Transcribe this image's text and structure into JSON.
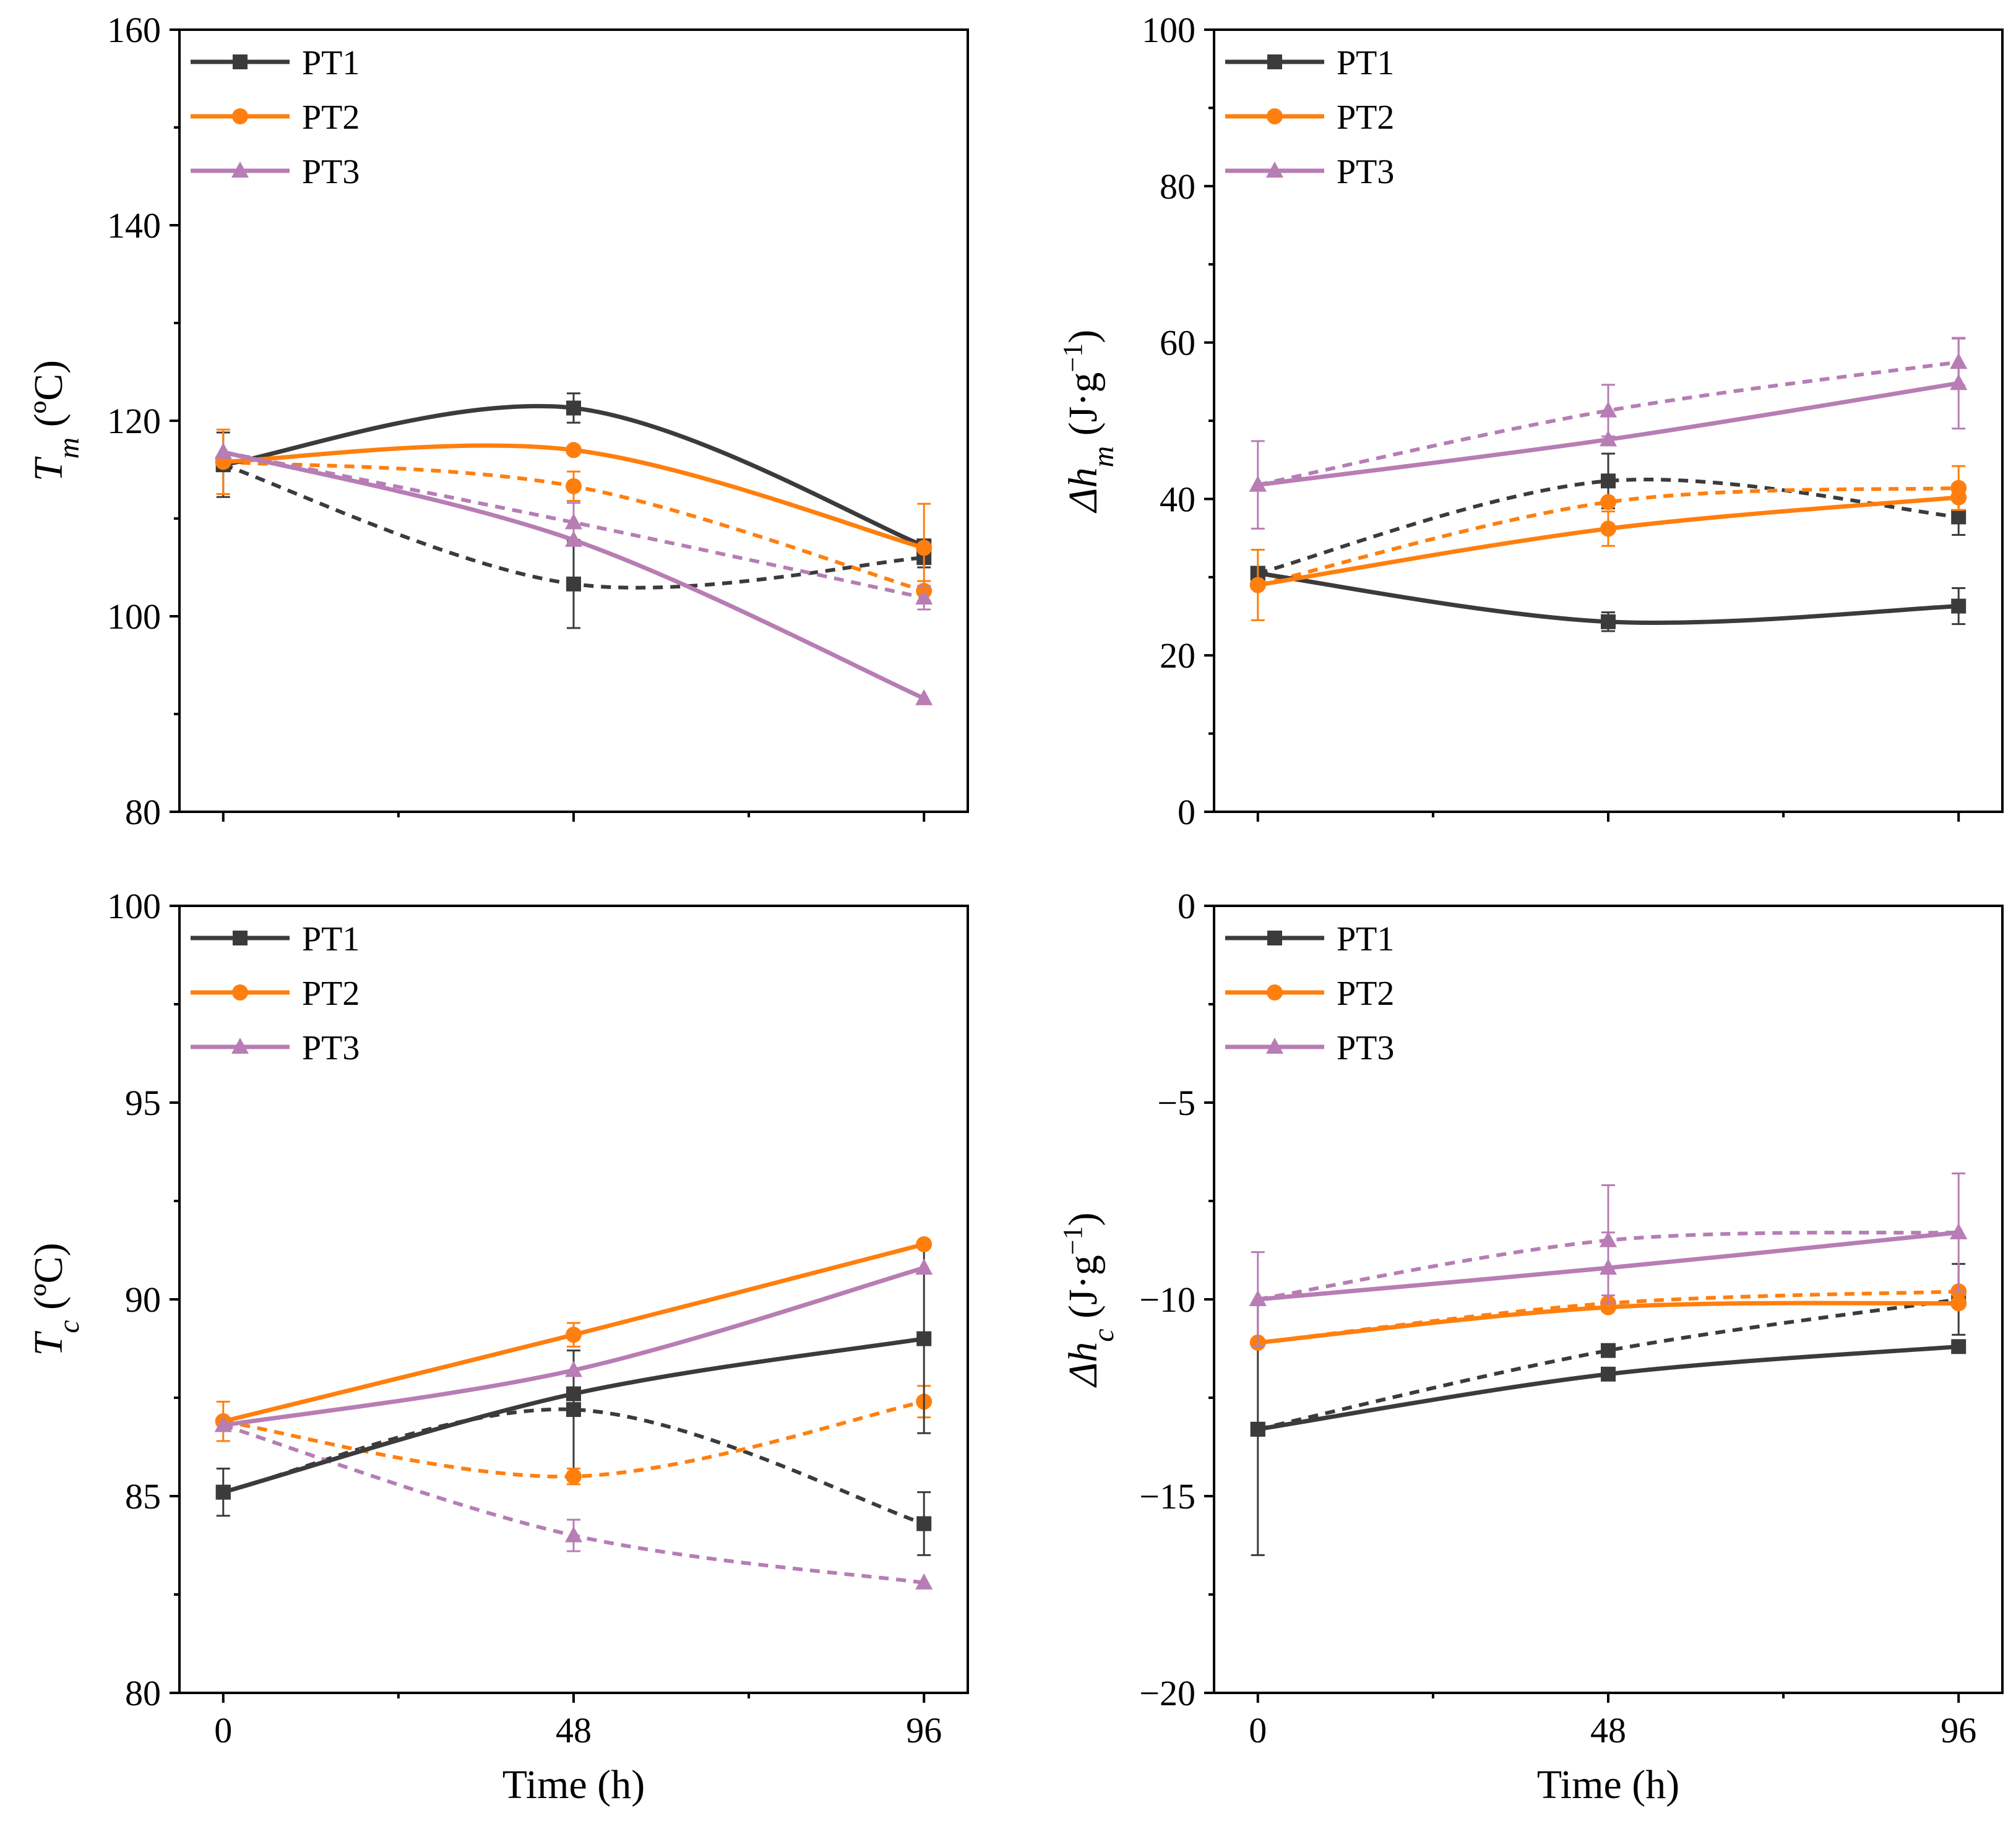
{
  "figure": {
    "colors": {
      "PT1": "#3b3b3b",
      "PT2": "#ff7f0e",
      "PT3": "#b77db4"
    },
    "markers": {
      "PT1": "square",
      "PT2": "circle",
      "PT3": "triangle"
    }
  },
  "chart_data": [
    {
      "id": "tm",
      "type": "line",
      "title": "",
      "xlabel": "",
      "ylabel": {
        "symbol": "T",
        "sub": "m",
        "unit": " (ºC)"
      },
      "x": [
        0,
        48,
        96
      ],
      "xticks": [
        "0",
        "48",
        "96"
      ],
      "show_xtick_labels": false,
      "ylim": [
        80,
        160
      ],
      "yticks": [
        80,
        100,
        120,
        140,
        160
      ],
      "legend": {
        "position": "top-left",
        "entries": [
          "PT1",
          "PT2",
          "PT3"
        ]
      },
      "series": [
        {
          "name": "PT1",
          "style": "solid",
          "values": [
            115.5,
            121.3,
            107.2
          ],
          "err": [
            0,
            1.5,
            0
          ]
        },
        {
          "name": "PT2",
          "style": "solid",
          "values": [
            115.8,
            117.0,
            107.0
          ],
          "err": [
            0,
            0,
            4.5
          ]
        },
        {
          "name": "PT3",
          "style": "solid",
          "values": [
            116.8,
            107.8,
            91.6
          ],
          "err": [
            0,
            0,
            0
          ]
        },
        {
          "name": "PT1",
          "style": "dashed",
          "values": [
            115.5,
            103.3,
            106.0
          ],
          "err": [
            3.3,
            4.5,
            1.0
          ]
        },
        {
          "name": "PT2",
          "style": "dashed",
          "values": [
            115.8,
            113.3,
            102.6
          ],
          "err": [
            3.3,
            1.5,
            1.0
          ]
        },
        {
          "name": "PT3",
          "style": "dashed",
          "values": [
            116.8,
            109.6,
            101.9
          ],
          "err": [
            0,
            2.0,
            1.2
          ]
        }
      ]
    },
    {
      "id": "dhm",
      "type": "line",
      "title": "",
      "xlabel": "",
      "ylabel": {
        "symbol": "Δh",
        "sub": "m",
        "unit": " (J·g",
        "sup": "−1",
        "close": ")"
      },
      "x": [
        0,
        48,
        96
      ],
      "xticks": [
        "0",
        "48",
        "96"
      ],
      "show_xtick_labels": false,
      "ylim": [
        0,
        100
      ],
      "yticks": [
        0,
        20,
        40,
        60,
        80,
        100
      ],
      "legend": {
        "position": "top-left",
        "entries": [
          "PT1",
          "PT2",
          "PT3"
        ]
      },
      "series": [
        {
          "name": "PT1",
          "style": "solid",
          "values": [
            30.5,
            24.3,
            26.3
          ],
          "err": [
            0,
            1.2,
            2.3
          ]
        },
        {
          "name": "PT2",
          "style": "solid",
          "values": [
            29.0,
            36.2,
            40.2
          ],
          "err": [
            4.5,
            2.2,
            0
          ]
        },
        {
          "name": "PT3",
          "style": "solid",
          "values": [
            41.8,
            47.6,
            54.8
          ],
          "err": [
            5.6,
            0,
            5.8
          ]
        },
        {
          "name": "PT1",
          "style": "dashed",
          "values": [
            30.5,
            42.3,
            37.7
          ],
          "err": [
            0,
            3.5,
            2.3
          ]
        },
        {
          "name": "PT2",
          "style": "dashed",
          "values": [
            29.0,
            39.6,
            41.4
          ],
          "err": [
            0,
            0,
            2.8
          ]
        },
        {
          "name": "PT3",
          "style": "dashed",
          "values": [
            41.8,
            51.3,
            57.5
          ],
          "err": [
            0,
            3.3,
            3.0
          ]
        }
      ]
    },
    {
      "id": "tc",
      "type": "line",
      "title": "",
      "xlabel": "Time (h)",
      "ylabel": {
        "symbol": "T",
        "sub": "c",
        "unit": " (ºC)"
      },
      "x": [
        0,
        48,
        96
      ],
      "xticks": [
        "0",
        "48",
        "96"
      ],
      "show_xtick_labels": true,
      "ylim": [
        80,
        100
      ],
      "yticks": [
        80,
        85,
        90,
        95,
        100
      ],
      "legend": {
        "position": "top-left",
        "entries": [
          "PT1",
          "PT2",
          "PT3"
        ]
      },
      "series": [
        {
          "name": "PT1",
          "style": "solid",
          "values": [
            85.1,
            87.6,
            89.0
          ],
          "err": [
            0.6,
            0,
            2.4
          ]
        },
        {
          "name": "PT2",
          "style": "solid",
          "values": [
            86.9,
            89.1,
            91.4
          ],
          "err": [
            0.5,
            0.3,
            0
          ]
        },
        {
          "name": "PT3",
          "style": "solid",
          "values": [
            86.8,
            88.2,
            90.8
          ],
          "err": [
            0,
            0,
            0
          ]
        },
        {
          "name": "PT1",
          "style": "dashed",
          "values": [
            85.1,
            87.2,
            84.3
          ],
          "err": [
            0,
            1.5,
            0.8
          ]
        },
        {
          "name": "PT2",
          "style": "dashed",
          "values": [
            86.9,
            85.5,
            87.4
          ],
          "err": [
            0,
            0.2,
            0.4
          ]
        },
        {
          "name": "PT3",
          "style": "dashed",
          "values": [
            86.8,
            84.0,
            82.8
          ],
          "err": [
            0,
            0.4,
            0
          ]
        }
      ]
    },
    {
      "id": "dhc",
      "type": "line",
      "title": "",
      "xlabel": "Time (h)",
      "ylabel": {
        "symbol": "Δh",
        "sub": "c",
        "unit": " (J·g",
        "sup": "−1",
        "close": ")"
      },
      "x": [
        0,
        48,
        96
      ],
      "xticks": [
        "0",
        "48",
        "96"
      ],
      "show_xtick_labels": true,
      "ylim": [
        -20,
        0
      ],
      "yticks": [
        -20,
        -15,
        -10,
        -5,
        0
      ],
      "legend": {
        "position": "top-left",
        "entries": [
          "PT1",
          "PT2",
          "PT3"
        ]
      },
      "series": [
        {
          "name": "PT1",
          "style": "solid",
          "values": [
            -13.3,
            -11.9,
            -11.2
          ],
          "err": [
            3.2,
            0,
            0
          ]
        },
        {
          "name": "PT2",
          "style": "solid",
          "values": [
            -11.1,
            -10.2,
            -10.1
          ],
          "err": [
            0,
            0,
            0
          ]
        },
        {
          "name": "PT3",
          "style": "solid",
          "values": [
            -10.0,
            -9.2,
            -8.3
          ],
          "err": [
            1.2,
            0.9,
            1.5
          ]
        },
        {
          "name": "PT1",
          "style": "dashed",
          "values": [
            -13.3,
            -11.3,
            -10.0
          ],
          "err": [
            0,
            0,
            0.9
          ]
        },
        {
          "name": "PT2",
          "style": "dashed",
          "values": [
            -11.1,
            -10.1,
            -9.8
          ],
          "err": [
            0,
            0,
            0
          ]
        },
        {
          "name": "PT3",
          "style": "dashed",
          "values": [
            -10.0,
            -8.5,
            -8.3
          ],
          "err": [
            0,
            1.4,
            0
          ]
        }
      ]
    }
  ]
}
